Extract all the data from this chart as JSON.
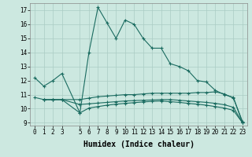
{
  "xlabel": "Humidex (Indice chaleur)",
  "xlim": [
    -0.5,
    23.5
  ],
  "ylim": [
    8.8,
    17.5
  ],
  "bg_color": "#cce8e0",
  "grid_color": "#aaccc4",
  "line_color": "#1a6b60",
  "line1_x": [
    0,
    1,
    2,
    3,
    5,
    6,
    7,
    8,
    9,
    10,
    11,
    12,
    13,
    14,
    15,
    16,
    17,
    18,
    19,
    20,
    21,
    22,
    23
  ],
  "line1_y": [
    12.2,
    11.6,
    12.0,
    12.5,
    9.7,
    14.0,
    17.2,
    16.1,
    15.0,
    16.3,
    16.0,
    15.0,
    14.3,
    14.3,
    13.2,
    13.0,
    12.7,
    12.0,
    11.9,
    11.3,
    11.0,
    10.8,
    9.0
  ],
  "line2_x": [
    0,
    1,
    2,
    3,
    5,
    6,
    7,
    8,
    9,
    10,
    11,
    12,
    13,
    14,
    15,
    16,
    17,
    18,
    19,
    20,
    21,
    22,
    23
  ],
  "line2_y": [
    10.8,
    10.65,
    10.65,
    10.65,
    10.65,
    10.75,
    10.85,
    10.9,
    10.95,
    11.0,
    11.0,
    11.05,
    11.1,
    11.1,
    11.1,
    11.1,
    11.1,
    11.15,
    11.15,
    11.2,
    11.05,
    10.75,
    9.1
  ],
  "line3_x": [
    1,
    2,
    3,
    5,
    6,
    7,
    8,
    9,
    10,
    11,
    12,
    13,
    14,
    15,
    16,
    17,
    18,
    19,
    20,
    21,
    22,
    23
  ],
  "line3_y": [
    10.65,
    10.65,
    10.65,
    10.3,
    10.35,
    10.4,
    10.45,
    10.5,
    10.55,
    10.58,
    10.6,
    10.62,
    10.65,
    10.65,
    10.6,
    10.55,
    10.5,
    10.45,
    10.38,
    10.28,
    10.1,
    9.0
  ],
  "line4_x": [
    1,
    2,
    3,
    5,
    6,
    7,
    8,
    9,
    10,
    11,
    12,
    13,
    14,
    15,
    16,
    17,
    18,
    19,
    20,
    21,
    22,
    23
  ],
  "line4_y": [
    10.65,
    10.65,
    10.65,
    9.7,
    10.05,
    10.15,
    10.25,
    10.32,
    10.38,
    10.43,
    10.48,
    10.52,
    10.55,
    10.5,
    10.45,
    10.38,
    10.32,
    10.25,
    10.15,
    10.05,
    9.88,
    9.0
  ],
  "xticks": [
    0,
    1,
    2,
    3,
    5,
    6,
    7,
    8,
    9,
    10,
    11,
    12,
    13,
    14,
    15,
    16,
    17,
    18,
    19,
    20,
    21,
    22,
    23
  ],
  "yticks": [
    9,
    10,
    11,
    12,
    13,
    14,
    15,
    16,
    17
  ],
  "tick_fontsize": 5.5,
  "label_fontsize": 7.0
}
